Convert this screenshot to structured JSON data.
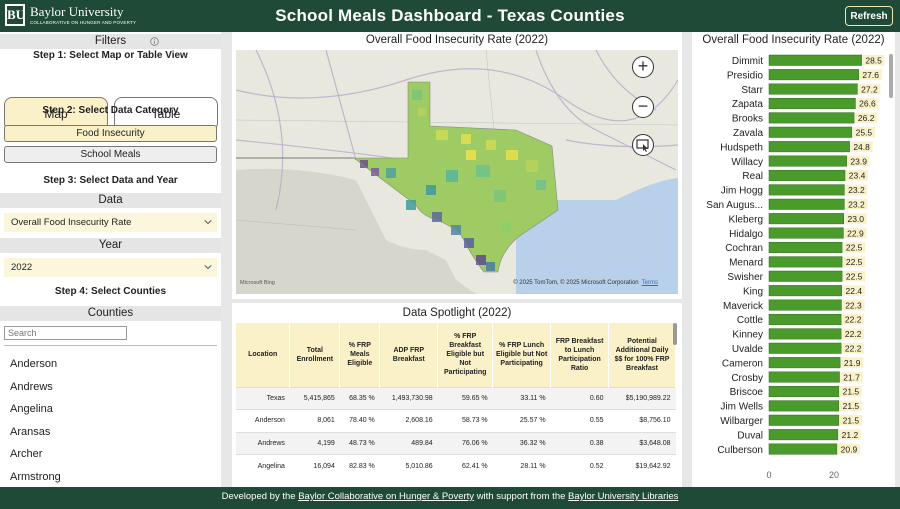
{
  "header": {
    "logo_name": "Baylor University",
    "logo_sub": "COLLABORATIVE ON HUNGER AND POVERTY",
    "title": "School Meals Dashboard - Texas Counties",
    "refresh_label": "Refresh"
  },
  "filters": {
    "title": "Filters",
    "step1": "Step 1: Select Map or Table View",
    "view_map": "Map",
    "view_table": "Table",
    "step2": "Step 2: Select Data Category",
    "cat_food": "Food Insecurity",
    "cat_meals": "School Meals",
    "step3": "Step 3: Select Data and Year",
    "data_label": "Data",
    "data_value": "Overall Food Insecurity Rate",
    "year_label": "Year",
    "year_value": "2022",
    "step4": "Step 4: Select Counties",
    "counties_label": "Counties",
    "search_placeholder": "Search",
    "counties": [
      "Anderson",
      "Andrews",
      "Angelina",
      "Aransas",
      "Archer",
      "Armstrong"
    ]
  },
  "map": {
    "title": "Overall Food Insecurity Rate (2022)",
    "attribution": "© 2025 TomTom, © 2025 Microsoft Corporation",
    "terms": "Terms",
    "provider": "Microsoft Bing"
  },
  "table": {
    "title": "Data Spotlight (2022)",
    "headers": [
      "Location",
      "Total Enrollment",
      "% FRP Meals Eligible",
      "ADP FRP Breakfast",
      "% FRP Breakfast Eligible but Not Participating",
      "% FRP Lunch Eligible but Not Participating",
      "FRP Breakfast to Lunch Participation Ratio",
      "Potential Additional Daily $$ for 100% FRP Breakfast"
    ],
    "rows": [
      [
        "Texas",
        "5,415,865",
        "68.35 %",
        "1,493,730.98",
        "59.65 %",
        "33.11 %",
        "0.60",
        "$5,190,989.22"
      ],
      [
        "Anderson",
        "8,061",
        "78.40 %",
        "2,608.16",
        "58.73 %",
        "25.57 %",
        "0.55",
        "$8,756.10"
      ],
      [
        "Andrews",
        "4,199",
        "48.73 %",
        "489.84",
        "76.06 %",
        "36.32 %",
        "0.38",
        "$3,648.08"
      ],
      [
        "Angelina",
        "16,094",
        "82.83 %",
        "5,010.86",
        "62.41 %",
        "28.11 %",
        "0.52",
        "$19,642.92"
      ]
    ]
  },
  "chart_data": {
    "type": "bar",
    "title": "Overall Food Insecurity Rate (2022)",
    "categories": [
      "Dimmit",
      "Presidio",
      "Starr",
      "Zapata",
      "Brooks",
      "Zavala",
      "Hudspeth",
      "Willacy",
      "Real",
      "Jim Hogg",
      "San Augus...",
      "Kleberg",
      "Hidalgo",
      "Cochran",
      "Menard",
      "Swisher",
      "King",
      "Maverick",
      "Cottle",
      "Kinney",
      "Uvalde",
      "Cameron",
      "Crosby",
      "Briscoe",
      "Jim Wells",
      "Wilbarger",
      "Duval",
      "Culberson"
    ],
    "values": [
      28.5,
      27.6,
      27.2,
      26.6,
      26.2,
      25.5,
      24.8,
      23.9,
      23.4,
      23.2,
      23.2,
      23.0,
      22.9,
      22.5,
      22.5,
      22.5,
      22.4,
      22.3,
      22.2,
      22.2,
      22.2,
      21.9,
      21.7,
      21.5,
      21.5,
      21.5,
      21.2,
      20.9
    ],
    "value_labels": [
      "28.5",
      "27.6",
      "27.2",
      "26.6",
      "26.2",
      "25.5",
      "24.8",
      "23.9",
      "23.4",
      "23.2",
      "23.2",
      "23.0",
      "22.9",
      "22.5",
      "22.5",
      "22.5",
      "22.4",
      "22.3",
      "22.2",
      "22.2",
      "22.2",
      "21.9",
      "21.7",
      "21.5",
      "21.5",
      "21.5",
      "21.2",
      "20.9"
    ],
    "xticks": [
      "0",
      "20"
    ],
    "xlim": [
      0,
      30
    ],
    "bar_color": "#4a9a2c",
    "label_bg": "#fbf1c9"
  },
  "footer": {
    "prefix": "Developed by the",
    "link1": "Baylor Collaborative on Hunger & Poverty",
    "middle": "with support from the",
    "link2": "Baylor University Libraries"
  }
}
